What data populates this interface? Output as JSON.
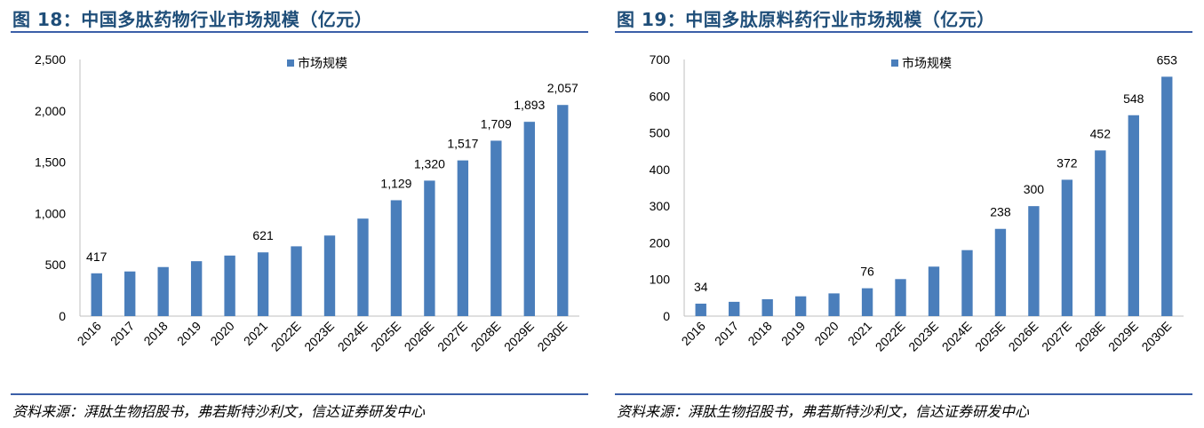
{
  "chart_data": [
    {
      "type": "bar",
      "title": "图 18：中国多肽药物行业市场规模（亿元）",
      "source": "资料来源：湃肽生物招股书，弗若斯特沙利文，信达证券研发中心",
      "categories": [
        "2016",
        "2017",
        "2018",
        "2019",
        "2020",
        "2021",
        "2022E",
        "2023E",
        "2024E",
        "2025E",
        "2026E",
        "2027E",
        "2028E",
        "2029E",
        "2030E"
      ],
      "series": [
        {
          "name": "市场规模",
          "values": [
            417,
            435,
            478,
            535,
            590,
            621,
            680,
            785,
            950,
            1129,
            1320,
            1517,
            1709,
            1893,
            2057
          ]
        }
      ],
      "data_labels": [
        "417",
        "",
        "",
        "",
        "",
        "621",
        "",
        "",
        "",
        "1,129",
        "1,320",
        "1,517",
        "1,709",
        "1,893",
        "2,057"
      ],
      "yticks": [
        "0",
        "500",
        "1,000",
        "1,500",
        "2,000",
        "2,500"
      ],
      "ylim": [
        0,
        2500
      ],
      "color": "#4a7ebb",
      "legend_position": "top-center",
      "grid": false
    },
    {
      "type": "bar",
      "title": "图 19：中国多肽原料药行业市场规模（亿元）",
      "source": "资料来源：湃肽生物招股书，弗若斯特沙利文，信达证券研发中心",
      "categories": [
        "2016",
        "2017",
        "2018",
        "2019",
        "2020",
        "2021",
        "2022E",
        "2023E",
        "2024E",
        "2025E",
        "2026E",
        "2027E",
        "2028E",
        "2029E",
        "2030E"
      ],
      "series": [
        {
          "name": "市场规模",
          "values": [
            34,
            39,
            46,
            54,
            62,
            76,
            101,
            135,
            180,
            238,
            300,
            372,
            452,
            548,
            653
          ]
        }
      ],
      "data_labels": [
        "34",
        "",
        "",
        "",
        "",
        "76",
        "",
        "",
        "",
        "238",
        "300",
        "372",
        "452",
        "548",
        "653"
      ],
      "yticks": [
        "0",
        "100",
        "200",
        "300",
        "400",
        "500",
        "600",
        "700"
      ],
      "ylim": [
        0,
        700
      ],
      "color": "#4a7ebb",
      "legend_position": "top-center",
      "grid": false
    }
  ]
}
